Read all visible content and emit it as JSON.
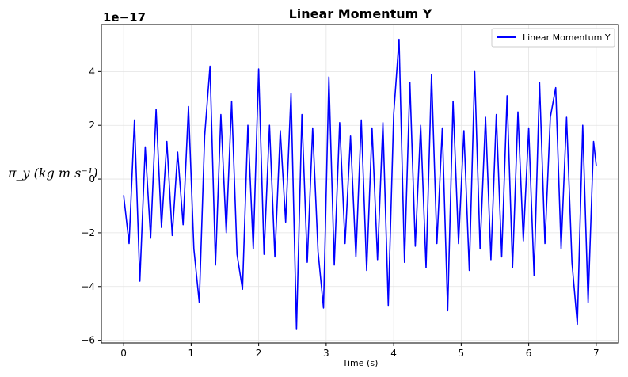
{
  "chart_data": {
    "type": "line",
    "title": "Linear Momentum Y",
    "xlabel": "Time (s)",
    "ylabel": "π_y (kg m s⁻¹)",
    "y_exponent_label": "1e−17",
    "y_scale_factor": 1e-17,
    "xlim": [
      -0.33,
      7.33
    ],
    "ylim": [
      -6.1,
      5.75
    ],
    "x_ticks": [
      0,
      1,
      2,
      3,
      4,
      5,
      6,
      7
    ],
    "y_ticks": [
      -6,
      -4,
      -2,
      0,
      2,
      4
    ],
    "grid": true,
    "legend_position": "top-right",
    "series": [
      {
        "name": "Linear Momentum Y",
        "color": "#0000ff",
        "x": [
          0.0,
          0.08,
          0.16,
          0.24,
          0.32,
          0.4,
          0.48,
          0.56,
          0.64,
          0.72,
          0.8,
          0.88,
          0.96,
          1.04,
          1.12,
          1.2,
          1.28,
          1.36,
          1.44,
          1.52,
          1.6,
          1.68,
          1.76,
          1.84,
          1.92,
          2.0,
          2.08,
          2.16,
          2.24,
          2.32,
          2.4,
          2.48,
          2.56,
          2.64,
          2.72,
          2.8,
          2.88,
          2.96,
          3.04,
          3.12,
          3.2,
          3.28,
          3.36,
          3.44,
          3.52,
          3.6,
          3.68,
          3.76,
          3.84,
          3.92,
          4.0,
          4.08,
          4.16,
          4.24,
          4.32,
          4.4,
          4.48,
          4.56,
          4.64,
          4.72,
          4.8,
          4.88,
          4.96,
          5.04,
          5.12,
          5.2,
          5.28,
          5.36,
          5.44,
          5.52,
          5.6,
          5.68,
          5.76,
          5.84,
          5.92,
          6.0,
          6.08,
          6.16,
          6.24,
          6.32,
          6.4,
          6.48,
          6.56,
          6.64,
          6.72,
          6.8,
          6.88,
          6.96,
          7.0
        ],
        "y": [
          -0.6,
          -2.4,
          2.2,
          -3.8,
          1.2,
          -2.2,
          2.6,
          -1.8,
          1.4,
          -2.1,
          1.0,
          -1.7,
          2.7,
          -2.6,
          -4.6,
          1.6,
          4.2,
          -3.2,
          2.4,
          -2.0,
          2.9,
          -2.8,
          -4.1,
          2.0,
          -2.6,
          4.1,
          -2.8,
          2.0,
          -2.9,
          1.8,
          -1.6,
          3.2,
          -5.6,
          2.4,
          -3.1,
          1.9,
          -2.7,
          -4.8,
          3.8,
          -3.2,
          2.1,
          -2.4,
          1.6,
          -2.9,
          2.2,
          -3.4,
          1.9,
          -3.0,
          2.1,
          -4.7,
          2.4,
          5.2,
          -3.1,
          3.6,
          -2.5,
          2.0,
          -3.3,
          3.9,
          -2.4,
          1.9,
          -4.9,
          2.9,
          -2.4,
          1.8,
          -3.4,
          4.0,
          -2.6,
          2.3,
          -3.0,
          2.4,
          -2.9,
          3.1,
          -3.3,
          2.5,
          -2.3,
          1.9,
          -3.6,
          3.6,
          -2.4,
          2.3,
          3.4,
          -2.6,
          2.3,
          -3.1,
          -5.4,
          2.0,
          -4.6,
          1.4,
          0.5
        ]
      }
    ]
  }
}
